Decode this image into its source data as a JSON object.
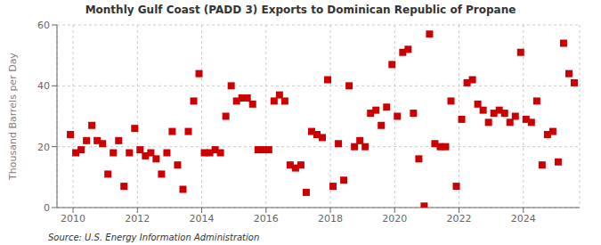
{
  "chart_data": {
    "type": "scatter",
    "title": "Monthly Gulf Coast (PADD 3) Exports to Dominican Republic of Propane",
    "ylabel": "Thousand Barrels per Day",
    "annotations": [
      "Source: U.S. Energy Information Administration"
    ],
    "color": "#cc0000",
    "marker": "square",
    "grid": true,
    "xlim": [
      2009.5,
      2025.75
    ],
    "xticks": [
      2010,
      2012,
      2014,
      2016,
      2018,
      2020,
      2022,
      2024
    ],
    "ylim": [
      0,
      60
    ],
    "yticks": [
      0,
      20,
      40,
      60
    ],
    "x": [
      2009.917,
      2010.083,
      2010.25,
      2010.417,
      2010.583,
      2010.75,
      2010.917,
      2011.083,
      2011.25,
      2011.417,
      2011.583,
      2011.75,
      2011.917,
      2012.083,
      2012.25,
      2012.417,
      2012.583,
      2012.75,
      2012.917,
      2013.083,
      2013.25,
      2013.417,
      2013.583,
      2013.75,
      2013.917,
      2014.083,
      2014.25,
      2014.417,
      2014.583,
      2014.75,
      2014.917,
      2015.083,
      2015.25,
      2015.417,
      2015.583,
      2015.75,
      2015.917,
      2016.083,
      2016.25,
      2016.417,
      2016.583,
      2016.75,
      2016.917,
      2017.083,
      2017.25,
      2017.417,
      2017.583,
      2017.75,
      2017.917,
      2018.083,
      2018.25,
      2018.417,
      2018.583,
      2018.75,
      2018.917,
      2019.083,
      2019.25,
      2019.417,
      2019.583,
      2019.75,
      2019.917,
      2020.083,
      2020.25,
      2020.417,
      2020.583,
      2020.75,
      2020.917,
      2021.083,
      2021.25,
      2021.417,
      2021.583,
      2021.75,
      2021.917,
      2022.083,
      2022.25,
      2022.417,
      2022.583,
      2022.75,
      2022.917,
      2023.083,
      2023.25,
      2023.417,
      2023.583,
      2023.75,
      2023.917,
      2024.083,
      2024.25,
      2024.417,
      2024.583,
      2024.75,
      2024.917,
      2025.083,
      2025.25,
      2025.417,
      2025.583
    ],
    "values": [
      24,
      18,
      19,
      22,
      27,
      22,
      21,
      11,
      18,
      22,
      7,
      18,
      26,
      19,
      17,
      18,
      16,
      11,
      18,
      25,
      14,
      6,
      25,
      35,
      44,
      18,
      18,
      19,
      18,
      30,
      40,
      35,
      36,
      36,
      34,
      19,
      19,
      19,
      35,
      37,
      35,
      14,
      13,
      14,
      5,
      25,
      24,
      23,
      42,
      7,
      21,
      9,
      40,
      20,
      22,
      20,
      31,
      32,
      27,
      33,
      47,
      30,
      51,
      52,
      31,
      16,
      0.5,
      57,
      21,
      20,
      20,
      35,
      7,
      29,
      41,
      42,
      34,
      32,
      28,
      31,
      32,
      31,
      28,
      30,
      51,
      29,
      28,
      35,
      14,
      24,
      25,
      15,
      54,
      44,
      41
    ]
  }
}
